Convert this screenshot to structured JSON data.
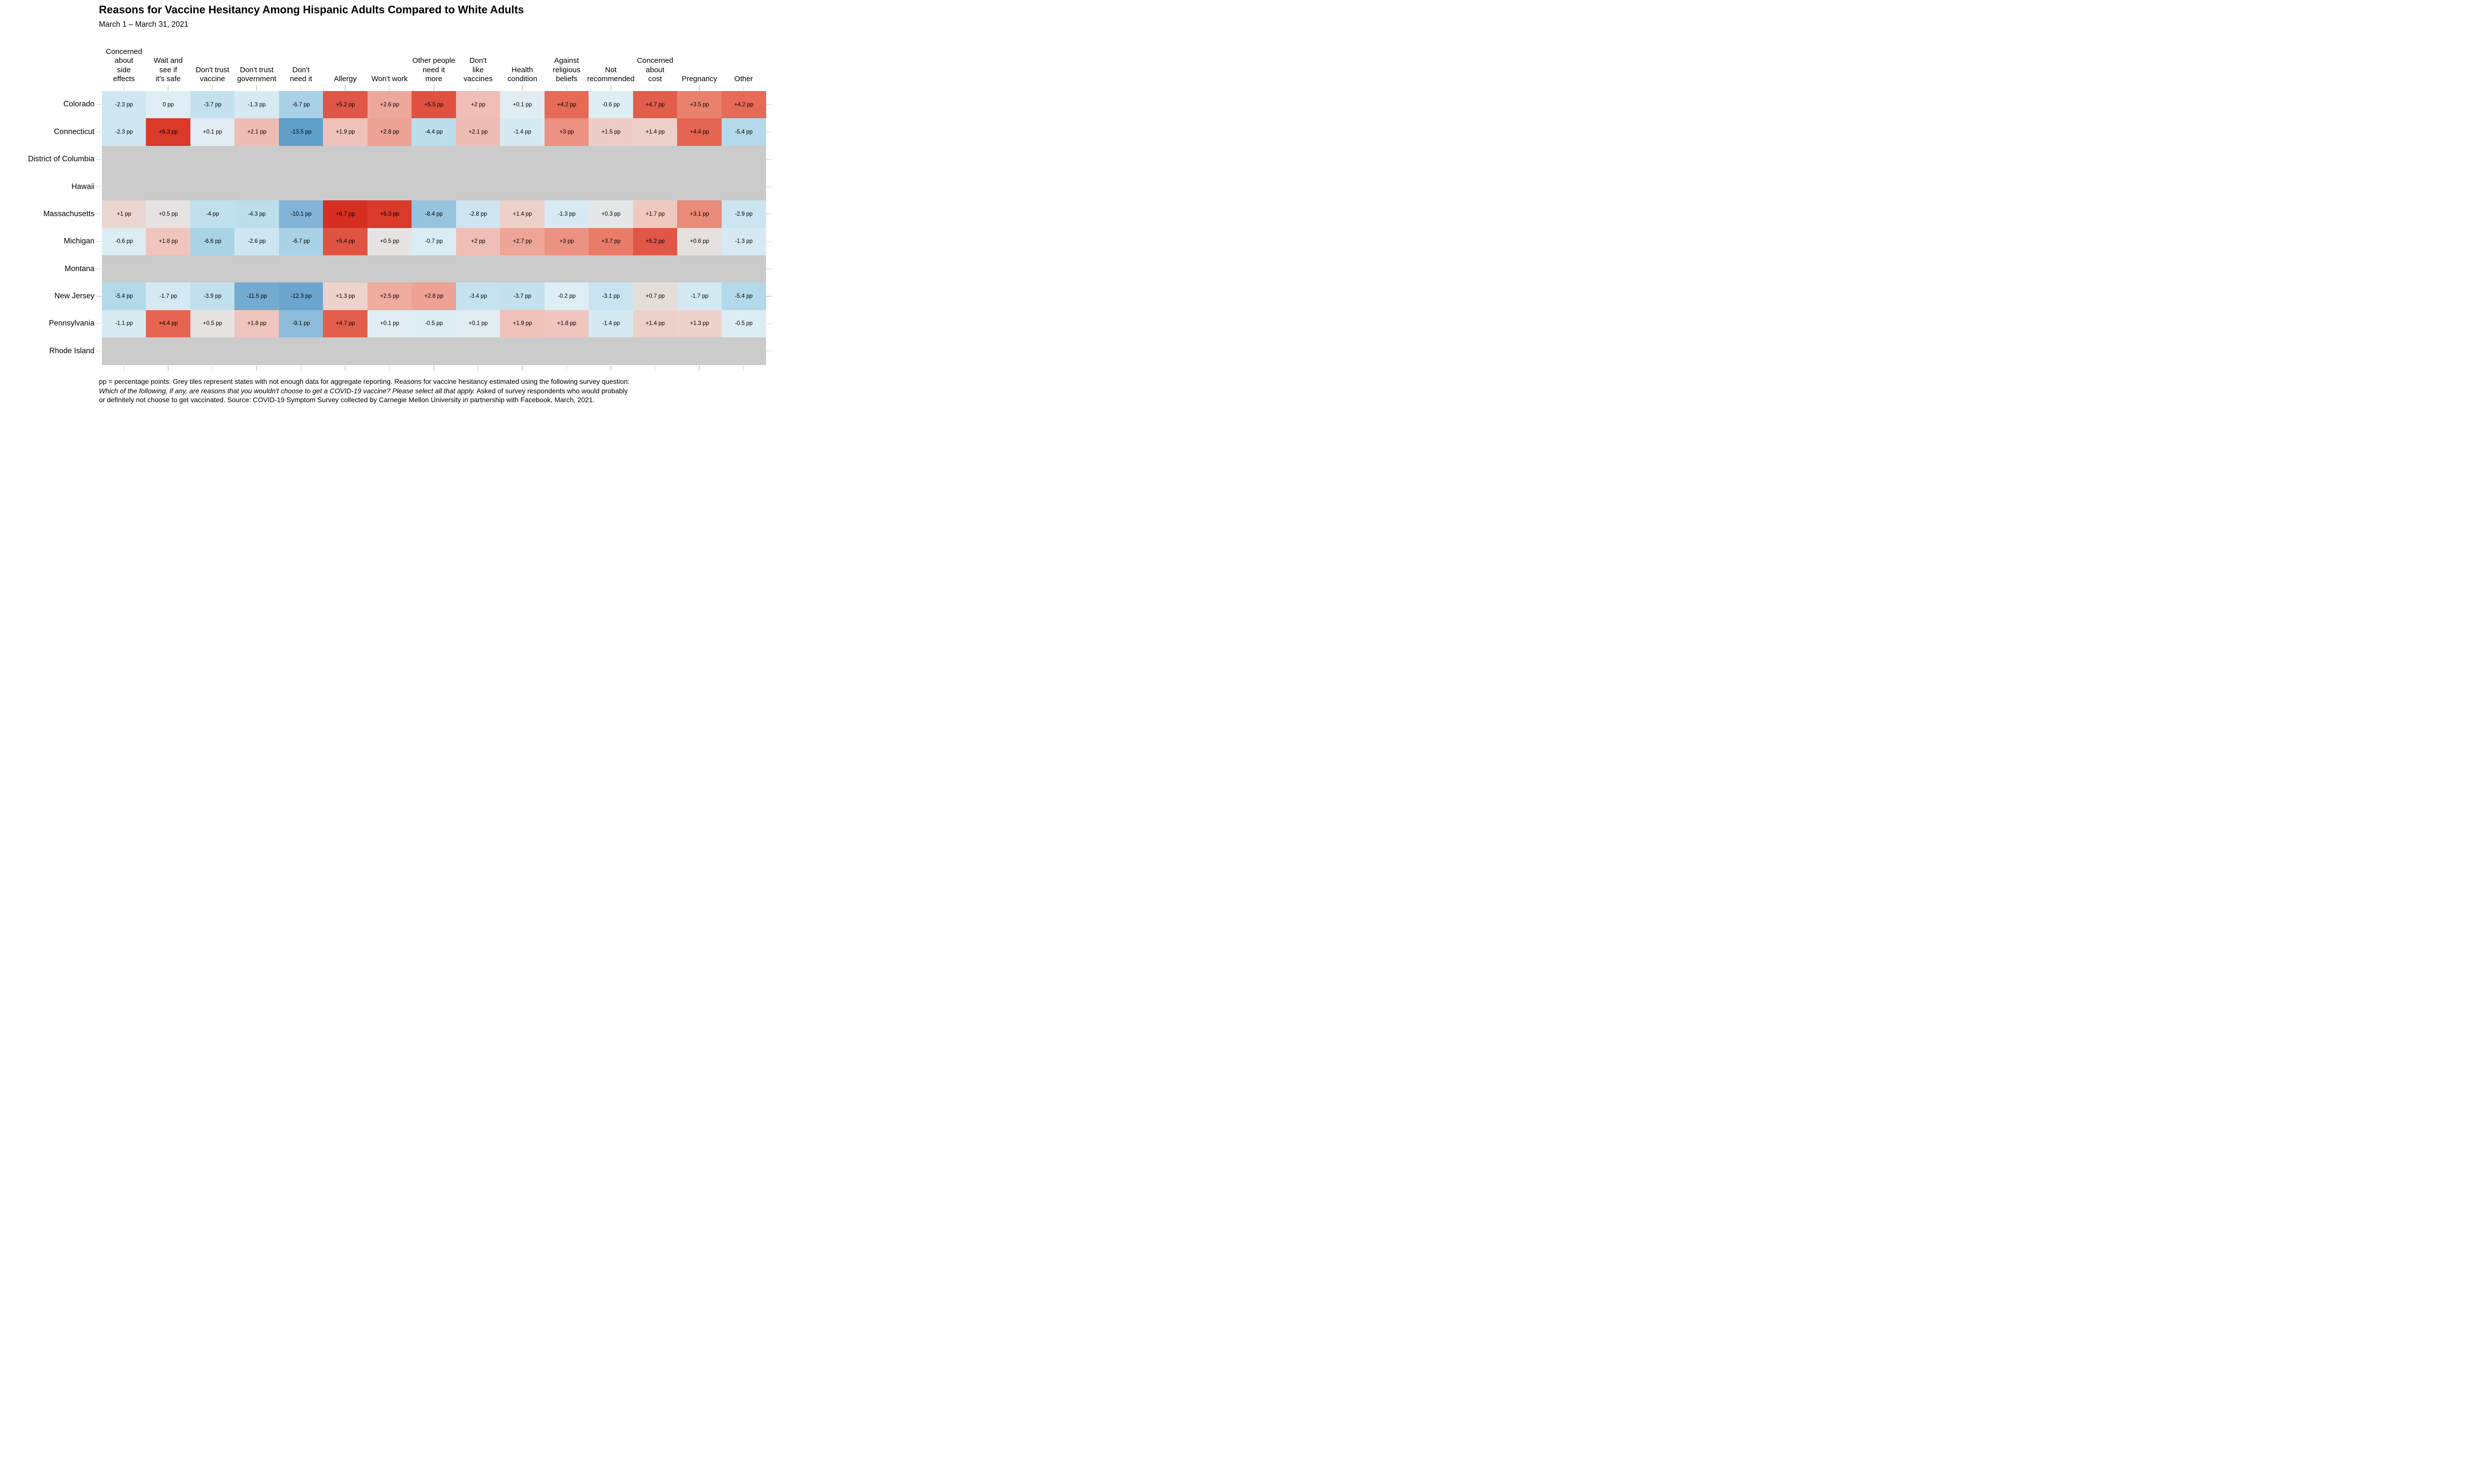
{
  "header": {
    "title": "Reasons for Vaccine Hesitancy Among Hispanic Adults Compared to White Adults",
    "subtitle": "March 1 – March 31, 2021"
  },
  "chart_data": {
    "type": "heatmap",
    "unit": "pp",
    "title": "Reasons for Vaccine Hesitancy Among Hispanic Adults Compared to White Adults",
    "subtitle": "March 1 – March 31, 2021",
    "columns": [
      "Concerned\nabout\nside\neffects",
      "Wait and\nsee if\nit's safe",
      "Don't trust\nvaccine",
      "Don't trust\ngovernment",
      "Don't\nneed it",
      "Allergy",
      "Won't work",
      "Other people\nneed it\nmore",
      "Don't\nlike\nvaccines",
      "Health\ncondition",
      "Against\nreligious\nbeliefs",
      "Not\nrecommended",
      "Concerned\nabout\ncost",
      "Pregnancy",
      "Other"
    ],
    "rows": [
      "Colorado",
      "Connecticut",
      "District of Columbia",
      "Hawaii",
      "Massachusetts",
      "Michigan",
      "Montana",
      "New Jersey",
      "Pennsylvania",
      "Rhode Island"
    ],
    "values": [
      [
        -2.3,
        0,
        -3.7,
        -1.3,
        -6.7,
        5.2,
        2.6,
        5.5,
        2,
        0.1,
        4.2,
        -0.6,
        4.7,
        3.5,
        4.2
      ],
      [
        -2.3,
        6.3,
        0.1,
        2.1,
        -13.5,
        1.9,
        2.8,
        -4.4,
        2.1,
        -1.4,
        3,
        1.5,
        1.4,
        4.4,
        -5.4
      ],
      null,
      null,
      [
        1,
        0.5,
        -4,
        -4.3,
        -10.1,
        6.7,
        6.3,
        -8.4,
        -2.8,
        1.4,
        -1.3,
        0.3,
        1.7,
        3.1,
        -2.9
      ],
      [
        -0.6,
        1.8,
        -6.6,
        -2.6,
        -6.7,
        5.4,
        0.5,
        -0.7,
        2,
        2.7,
        3,
        3.7,
        5.2,
        0.6,
        -1.3
      ],
      null,
      [
        -5.4,
        -1.7,
        -3.9,
        -11.5,
        -12.3,
        1.3,
        2.5,
        2.8,
        -3.4,
        -3.7,
        -0.2,
        -3.1,
        0.7,
        -1.7,
        -5.4
      ],
      [
        -1.1,
        4.4,
        0.5,
        1.8,
        -9.1,
        4.7,
        0.1,
        -0.5,
        0.1,
        1.9,
        1.8,
        -1.4,
        1.4,
        1.3,
        -0.5
      ],
      null
    ],
    "value_label_suffix": " pp",
    "palette": {
      "na": "#cbcbcb",
      "stops": [
        [
          -13.5,
          "#5f9fca"
        ],
        [
          -12.3,
          "#6ca6ce"
        ],
        [
          -11.5,
          "#74abd1"
        ],
        [
          -10.1,
          "#81b4d6"
        ],
        [
          -9.1,
          "#8dbcda"
        ],
        [
          -8.4,
          "#96c3dd"
        ],
        [
          -6.7,
          "#a9d2e6"
        ],
        [
          -5.4,
          "#b3d9ea"
        ],
        [
          -4.4,
          "#bcdeed"
        ],
        [
          -3.7,
          "#c3e1ee"
        ],
        [
          -2.8,
          "#cce5f1"
        ],
        [
          -2.3,
          "#cfe7f2"
        ],
        [
          -1.4,
          "#d6eaf3"
        ],
        [
          -0.6,
          "#dcedf4"
        ],
        [
          0,
          "#dfeef5"
        ],
        [
          0.1,
          "#e1edf2"
        ],
        [
          0.3,
          "#e3e7e8"
        ],
        [
          0.5,
          "#e7e3e3"
        ],
        [
          0.7,
          "#e4dedb"
        ],
        [
          1,
          "#ecd6d2"
        ],
        [
          1.4,
          "#eed0ca"
        ],
        [
          1.8,
          "#f0c5bd"
        ],
        [
          2.1,
          "#efbcb4"
        ],
        [
          2.5,
          "#eeab9e"
        ],
        [
          2.8,
          "#eda294"
        ],
        [
          3.1,
          "#ea8a79"
        ],
        [
          3.7,
          "#e97c69"
        ],
        [
          4.2,
          "#e66a56"
        ],
        [
          4.7,
          "#e35d4b"
        ],
        [
          5.2,
          "#e05647"
        ],
        [
          5.5,
          "#df5240"
        ],
        [
          6.3,
          "#d93a2a"
        ],
        [
          6.7,
          "#d62f21"
        ]
      ]
    },
    "legend_position": "none",
    "grid": false,
    "footnote": {
      "line1": "pp = percentage points. Grey tiles represent states with not enough data for aggregate reporting. Reasons for vaccine hesitancy estimated using the following survey question:",
      "line2_italic": "Which of the following, if any, are reasons that you wouldn't choose to get a COVID-19 vaccine? Please select all that apply.",
      "line2_regular": " Asked of survey respondents who would probably",
      "line3": "or definitely not choose to get vaccinated. Source: COVID-19 Symptom Survey collected by Carnegie Mellon University in partnership with Facebook, March, 2021."
    }
  }
}
